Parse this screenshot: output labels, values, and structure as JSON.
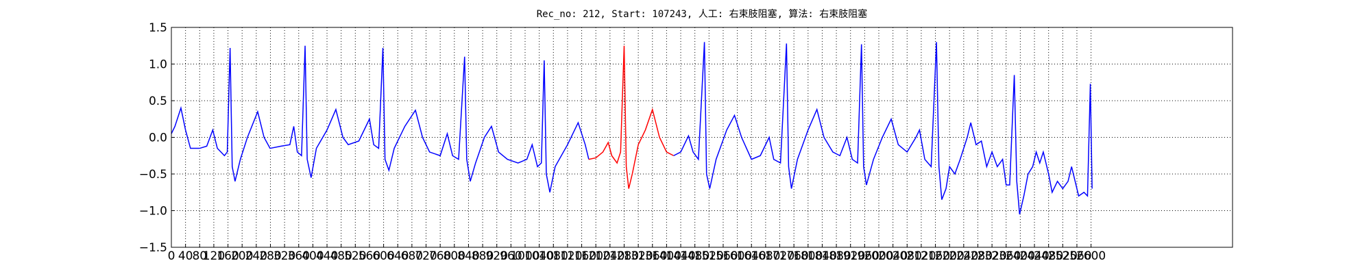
{
  "chart_data": {
    "type": "line",
    "title": "Rec_no: 212, Start: 107243, 人工: 右束肢阻塞, 算法: 右束肢阻塞",
    "xlim": [
      0,
      3000
    ],
    "xticks": [
      0,
      40,
      80,
      120,
      160,
      200,
      240,
      280,
      320,
      360,
      400,
      440,
      480,
      520,
      560,
      600,
      640,
      680,
      720,
      760,
      800,
      840,
      880,
      920,
      960,
      1000,
      1040,
      1080,
      1120,
      1160,
      1200,
      1240,
      1280,
      1320,
      1360,
      1400,
      1440,
      1480,
      1520,
      1560,
      1600,
      1640,
      1680,
      1720,
      1760,
      1800,
      1840,
      1880,
      1920,
      1960,
      2000,
      2040,
      2080,
      2120,
      2160,
      2200,
      2240,
      2280,
      2320,
      2360,
      2400,
      2440,
      2480,
      2520,
      2560,
      2600
    ],
    "ylim": [
      -1.5,
      1.5
    ],
    "yticks": [
      1.5,
      {
        "value": 1.0,
        "label": "1.0"
      },
      0.5,
      {
        "value": 0.0,
        "label": "0.0"
      },
      {
        "value": -0.5,
        "label": "−0.5"
      },
      {
        "value": -1.0,
        "label": "−1.0"
      },
      {
        "value": -1.5,
        "label": "−1.5"
      }
    ],
    "grid": true,
    "series": [
      {
        "color": "#0000ff",
        "x": [
          0,
          10,
          27,
          40,
          54,
          80,
          100,
          117,
          130,
          150,
          158,
          166,
          172,
          180,
          195,
          215,
          244,
          262,
          279,
          310,
          335,
          346,
          356,
          368,
          378,
          384,
          395,
          410,
          440,
          465,
          485,
          500,
          530,
          560,
          572,
          586,
          598,
          604,
          615,
          630,
          660,
          690,
          710,
          730,
          760,
          780,
          795,
          812,
          829,
          835,
          845,
          860,
          885,
          905,
          925,
          950,
          980,
          1005,
          1020,
          1035,
          1046,
          1054,
          1060,
          1070,
          1085,
          1120,
          1150,
          1170,
          1180
        ],
        "values": [
          0.05,
          0.15,
          0.4,
          0.1,
          -0.15,
          -0.15,
          -0.12,
          0.1,
          -0.15,
          -0.25,
          -0.2,
          1.22,
          -0.4,
          -0.6,
          -0.3,
          0.0,
          0.35,
          0.0,
          -0.15,
          -0.12,
          -0.1,
          0.15,
          -0.2,
          -0.25,
          1.25,
          -0.3,
          -0.55,
          -0.15,
          0.1,
          0.38,
          0.0,
          -0.1,
          -0.05,
          0.25,
          -0.1,
          -0.15,
          1.22,
          -0.3,
          -0.45,
          -0.15,
          0.15,
          0.37,
          0.0,
          -0.2,
          -0.25,
          0.05,
          -0.25,
          -0.3,
          1.1,
          -0.3,
          -0.6,
          -0.35,
          0.0,
          0.15,
          -0.2,
          -0.3,
          -0.35,
          -0.3,
          -0.1,
          -0.4,
          -0.35,
          1.05,
          -0.5,
          -0.75,
          -0.4,
          -0.1,
          0.2,
          -0.1,
          -0.3
        ]
      },
      {
        "color": "#ff0000",
        "x": [
          1180,
          1200,
          1220,
          1235,
          1245,
          1260,
          1270,
          1280,
          1286,
          1293,
          1303,
          1320,
          1340,
          1360,
          1380,
          1400,
          1420
        ],
        "values": [
          -0.3,
          -0.28,
          -0.2,
          -0.07,
          -0.25,
          -0.35,
          -0.2,
          1.25,
          -0.4,
          -0.7,
          -0.5,
          -0.1,
          0.1,
          0.38,
          0.0,
          -0.2,
          -0.25
        ]
      },
      {
        "color": "#0000ff",
        "x": [
          1420,
          1440,
          1462,
          1475,
          1490,
          1507,
          1513,
          1522,
          1540,
          1570,
          1592,
          1612,
          1640,
          1665,
          1690,
          1703,
          1722,
          1739,
          1745,
          1753,
          1770,
          1800,
          1825,
          1845,
          1870,
          1890,
          1910,
          1925,
          1940,
          1951,
          1957,
          1965,
          1985,
          2010,
          2035,
          2055,
          2080,
          2105,
          2115,
          2130,
          2148,
          2163,
          2170,
          2178,
          2190,
          2200,
          2215,
          2230,
          2250,
          2260,
          2275,
          2290,
          2305,
          2320,
          2335,
          2350,
          2360,
          2370,
          2383,
          2390,
          2398,
          2410,
          2422,
          2435,
          2445,
          2455,
          2465,
          2480,
          2490,
          2505,
          2520,
          2535,
          2545,
          2555,
          2565,
          2580,
          2590,
          2598,
          2603
        ],
        "values": [
          -0.25,
          -0.2,
          0.02,
          -0.2,
          -0.3,
          1.3,
          -0.5,
          -0.7,
          -0.3,
          0.1,
          0.3,
          0.0,
          -0.3,
          -0.25,
          0.0,
          -0.3,
          -0.35,
          1.28,
          -0.4,
          -0.7,
          -0.3,
          0.1,
          0.38,
          0.0,
          -0.2,
          -0.25,
          0.0,
          -0.3,
          -0.35,
          1.27,
          -0.4,
          -0.65,
          -0.3,
          0.0,
          0.25,
          -0.1,
          -0.2,
          0.0,
          0.1,
          -0.3,
          -0.4,
          1.3,
          -0.4,
          -0.85,
          -0.7,
          -0.4,
          -0.5,
          -0.3,
          0.0,
          0.2,
          -0.1,
          -0.05,
          -0.4,
          -0.2,
          -0.4,
          -0.3,
          -0.65,
          -0.65,
          0.85,
          -0.6,
          -1.05,
          -0.8,
          -0.5,
          -0.4,
          -0.2,
          -0.35,
          -0.2,
          -0.5,
          -0.75,
          -0.6,
          -0.7,
          -0.6,
          -0.4,
          -0.6,
          -0.8,
          -0.75,
          -0.8,
          0.73,
          -0.7
        ]
      }
    ]
  }
}
